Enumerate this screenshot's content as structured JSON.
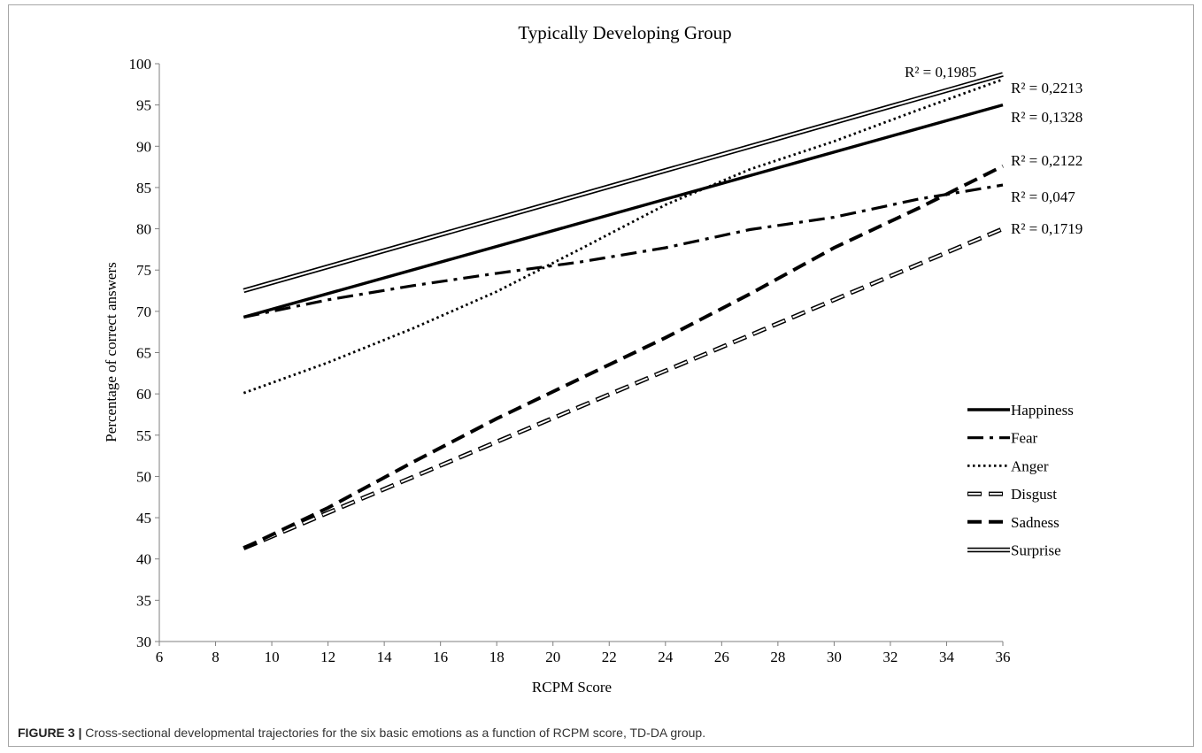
{
  "caption": {
    "label": "FIGURE 3 |",
    "text": " Cross-sectional developmental trajectories for the six basic emotions as a function of RCPM score, TD-DA group."
  },
  "chart_data": {
    "type": "line",
    "title": "Typically Developing Group",
    "xlabel": "RCPM Score",
    "ylabel": "Percentage of correct answers",
    "xlim": [
      6,
      36
    ],
    "ylim": [
      30,
      100
    ],
    "xticks": [
      6,
      8,
      10,
      12,
      14,
      16,
      18,
      20,
      22,
      24,
      26,
      28,
      30,
      32,
      34,
      36
    ],
    "yticks": [
      30,
      35,
      40,
      45,
      50,
      55,
      60,
      65,
      70,
      75,
      80,
      85,
      90,
      95,
      100
    ],
    "grid": false,
    "legend_position": "bottom-right",
    "series": [
      {
        "name": "Happiness",
        "style": "solid",
        "x": [
          9,
          36
        ],
        "y": [
          69.3,
          95.0
        ],
        "r2_label": "R² = 0,1328"
      },
      {
        "name": "Fear",
        "style": "dashdot",
        "x": [
          9,
          12,
          15,
          18,
          21,
          24,
          27,
          30,
          33,
          36
        ],
        "y": [
          69.3,
          71.4,
          73.1,
          74.6,
          76.0,
          77.7,
          79.9,
          81.4,
          83.6,
          85.3
        ],
        "r2_label": "R² = 0,047"
      },
      {
        "name": "Anger",
        "style": "dotted",
        "x": [
          9,
          12,
          15,
          18,
          21,
          24,
          27,
          30,
          33,
          36
        ],
        "y": [
          60.1,
          63.8,
          67.9,
          72.4,
          77.6,
          82.9,
          87.2,
          90.6,
          94.4,
          98.1
        ],
        "r2_label": "R² = 0,2213"
      },
      {
        "name": "Disgust",
        "style": "hollow-dashed",
        "x": [
          9,
          36
        ],
        "y": [
          41.3,
          80.0
        ],
        "r2_label": "R² = 0,1719"
      },
      {
        "name": "Sadness",
        "style": "dashed",
        "x": [
          9,
          12,
          15,
          18,
          21,
          24,
          27,
          30,
          33,
          36
        ],
        "y": [
          41.3,
          46.2,
          51.7,
          57.0,
          61.9,
          66.8,
          72.1,
          77.7,
          82.5,
          87.6
        ],
        "r2_label": "R² = 0,2122"
      },
      {
        "name": "Surprise",
        "style": "double",
        "x": [
          9,
          36
        ],
        "y": [
          72.5,
          98.7
        ],
        "r2_label": "R² = 0,1985"
      }
    ]
  }
}
